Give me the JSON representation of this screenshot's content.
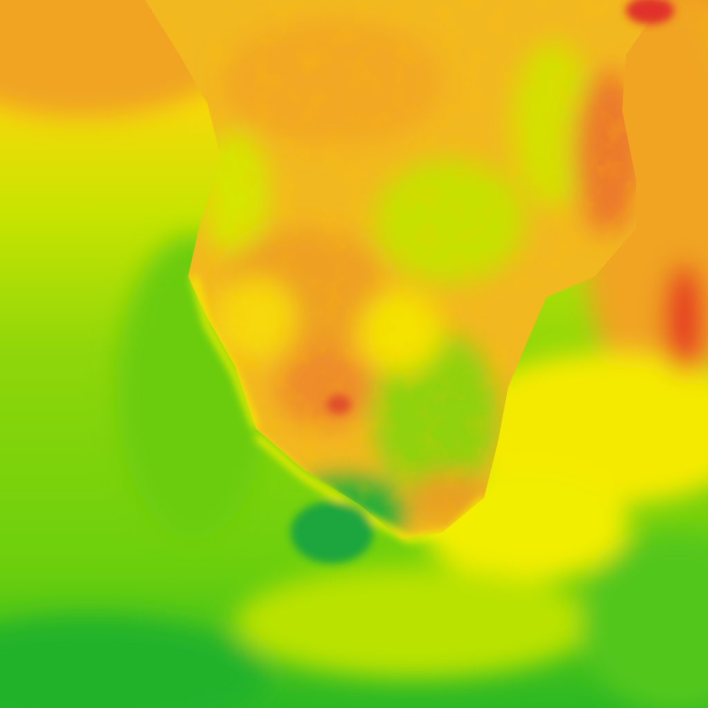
{
  "map": {
    "kind": "heatmap-raster",
    "region": "southern-africa",
    "palette": {
      "hot": "#e0302a",
      "warm": "#ee9a1e",
      "mild": "#f5c518",
      "neutral": "#f7ee00",
      "cool": "#c6e500",
      "cooler": "#7fd30a",
      "cold": "#3fbf18",
      "coldest": "#1aaa3c"
    }
  }
}
